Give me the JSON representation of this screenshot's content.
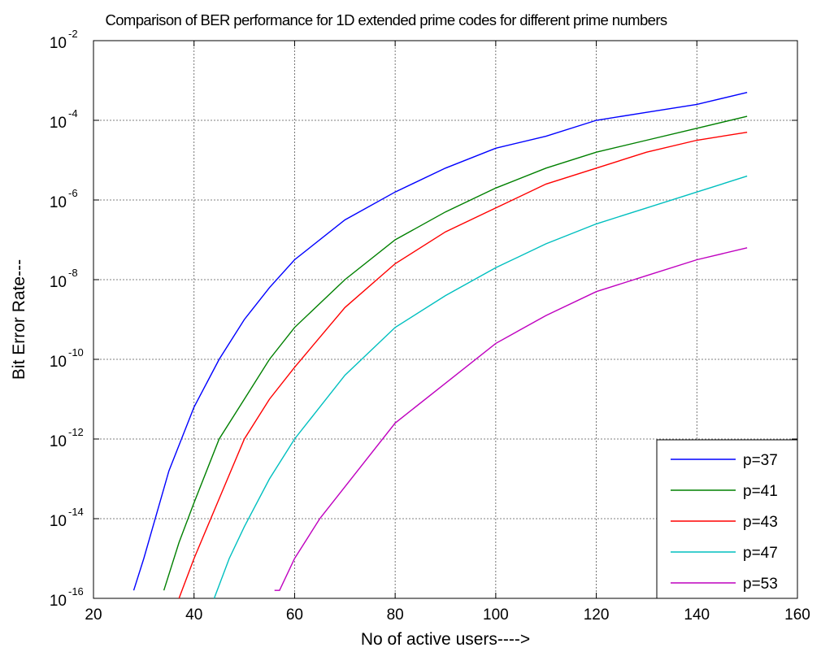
{
  "chart_data": {
    "type": "line",
    "title": "Comparison of BER performance for 1D extended prime codes for different prime numbers",
    "xlabel": "No of active users---->",
    "ylabel": "Bit Error Rate---",
    "xlim": [
      20,
      160
    ],
    "ylim_exp": [
      -16,
      -2
    ],
    "y_scale": "log",
    "grid": true,
    "legend_position": "lower-right",
    "x_ticks": [
      "20",
      "40",
      "60",
      "80",
      "100",
      "120",
      "140",
      "160"
    ],
    "y_tick_base": "10",
    "y_tick_exponents": [
      "-16",
      "-14",
      "-12",
      "-10",
      "-8",
      "-6",
      "-4",
      "-2"
    ],
    "series": [
      {
        "name": "p=37",
        "color": "#0000ff",
        "x": [
          28,
          30,
          35,
          40,
          45,
          50,
          55,
          60,
          70,
          80,
          90,
          100,
          110,
          120,
          130,
          140,
          150
        ],
        "y_log10": [
          -15.8,
          -15.0,
          -12.8,
          -11.2,
          -10.0,
          -9.0,
          -8.2,
          -7.5,
          -6.5,
          -5.8,
          -5.2,
          -4.7,
          -4.4,
          -4.0,
          -3.8,
          -3.6,
          -3.3
        ]
      },
      {
        "name": "p=41",
        "color": "#008000",
        "x": [
          34,
          37,
          40,
          45,
          50,
          55,
          60,
          70,
          80,
          90,
          100,
          110,
          120,
          130,
          140,
          150
        ],
        "y_log10": [
          -15.8,
          -14.6,
          -13.6,
          -12.0,
          -11.0,
          -10.0,
          -9.2,
          -8.0,
          -7.0,
          -6.3,
          -5.7,
          -5.2,
          -4.8,
          -4.5,
          -4.2,
          -3.9
        ]
      },
      {
        "name": "p=43",
        "color": "#ff0000",
        "x": [
          37,
          40,
          45,
          50,
          55,
          60,
          70,
          80,
          90,
          100,
          110,
          120,
          130,
          140,
          150
        ],
        "y_log10": [
          -16.0,
          -15.0,
          -13.5,
          -12.0,
          -11.0,
          -10.2,
          -8.7,
          -7.6,
          -6.8,
          -6.2,
          -5.6,
          -5.2,
          -4.8,
          -4.5,
          -4.3
        ]
      },
      {
        "name": "p=47",
        "color": "#00bfbf",
        "x": [
          44,
          47,
          50,
          55,
          60,
          70,
          80,
          90,
          100,
          110,
          120,
          130,
          140,
          150
        ],
        "y_log10": [
          -16.0,
          -15.0,
          -14.2,
          -13.0,
          -12.0,
          -10.4,
          -9.2,
          -8.4,
          -7.7,
          -7.1,
          -6.6,
          -6.2,
          -5.8,
          -5.4
        ]
      },
      {
        "name": "p=53",
        "color": "#bf00bf",
        "x": [
          56,
          57,
          60,
          65,
          70,
          80,
          90,
          100,
          110,
          120,
          130,
          140,
          150
        ],
        "y_log10": [
          -15.8,
          -15.8,
          -15.0,
          -14.0,
          -13.2,
          -11.6,
          -10.6,
          -9.6,
          -8.9,
          -8.3,
          -7.9,
          -7.5,
          -7.2
        ]
      }
    ]
  }
}
